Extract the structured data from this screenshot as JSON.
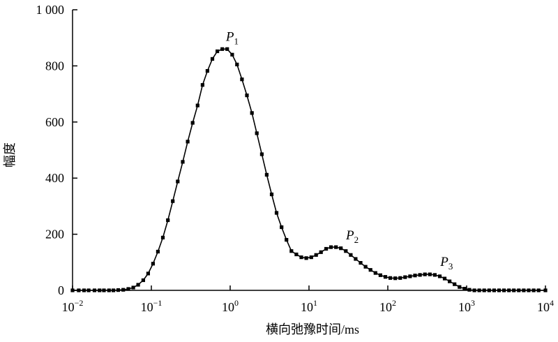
{
  "chart_data": {
    "type": "line",
    "title": "",
    "xlabel": "横向弛豫时间/ms",
    "ylabel": "幅度",
    "x_scale": "log",
    "xlim": [
      0.01,
      10000
    ],
    "ylim": [
      0,
      1000
    ],
    "grid": false,
    "legend": "none",
    "line_color": "#000000",
    "marker": "square",
    "x_ticks": [
      {
        "value": 0.01,
        "base": "10",
        "exp": "−2"
      },
      {
        "value": 0.1,
        "base": "10",
        "exp": "−1"
      },
      {
        "value": 1,
        "base": "10",
        "exp": "0"
      },
      {
        "value": 10,
        "base": "10",
        "exp": "1"
      },
      {
        "value": 100,
        "base": "10",
        "exp": "2"
      },
      {
        "value": 1000,
        "base": "10",
        "exp": "3"
      },
      {
        "value": 10000,
        "base": "10",
        "exp": "4"
      }
    ],
    "y_ticks": [
      {
        "value": 0,
        "label": "0"
      },
      {
        "value": 200,
        "label": "200"
      },
      {
        "value": 400,
        "label": "400"
      },
      {
        "value": 600,
        "label": "600"
      },
      {
        "value": 800,
        "label": "800"
      },
      {
        "value": 1000,
        "label": "1 000"
      }
    ],
    "annotations": [
      {
        "letter": "P",
        "sub": "1",
        "x": 1.2,
        "y": 860
      },
      {
        "letter": "P",
        "sub": "2",
        "x": 40,
        "y": 152
      },
      {
        "letter": "P",
        "sub": "3",
        "x": 630,
        "y": 57
      }
    ],
    "series": [
      {
        "x": [
          0.01,
          0.012,
          0.014,
          0.016,
          0.019,
          0.022,
          0.025,
          0.029,
          0.033,
          0.038,
          0.044,
          0.051,
          0.059,
          0.068,
          0.079,
          0.091,
          0.105,
          0.121,
          0.14,
          0.162,
          0.187,
          0.216,
          0.25,
          0.289,
          0.334,
          0.386,
          0.446,
          0.515,
          0.595,
          0.687,
          0.794,
          0.917,
          1.06,
          1.22,
          1.41,
          1.63,
          1.89,
          2.18,
          2.52,
          2.91,
          3.36,
          3.88,
          4.49,
          5.18,
          5.99,
          6.92,
          7.99,
          9.23,
          10.7,
          12.3,
          14.2,
          16.5,
          19.0,
          22.0,
          25.4,
          29.3,
          33.9,
          39.1,
          45.2,
          52.2,
          60.3,
          69.7,
          80.6,
          93.1,
          107.6,
          124.3,
          143.6,
          165.9,
          191.7,
          221.5,
          255.9,
          295.6,
          341.6,
          394.6,
          455.9,
          526.7,
          608.6,
          703.1,
          812.4,
          938.6,
          1084,
          1253,
          1447,
          1672,
          1932,
          2232,
          2579,
          2980,
          3442,
          3977,
          4595,
          5309,
          6134,
          7087,
          8188,
          10000
        ],
        "y": [
          0,
          0,
          0,
          0,
          0,
          0,
          0,
          0,
          0,
          1,
          2,
          5,
          10,
          20,
          36,
          60,
          95,
          138,
          188,
          250,
          318,
          388,
          458,
          530,
          597,
          659,
          732,
          782,
          825,
          852,
          860,
          860,
          840,
          805,
          752,
          695,
          632,
          560,
          485,
          412,
          342,
          276,
          225,
          180,
          140,
          128,
          118,
          115,
          118,
          126,
          136,
          148,
          154,
          154,
          150,
          140,
          126,
          112,
          98,
          84,
          73,
          62,
          54,
          48,
          44,
          43,
          44,
          47,
          50,
          53,
          55,
          57,
          57,
          55,
          50,
          42,
          32,
          22,
          12,
          6,
          2,
          0,
          0,
          0,
          0,
          0,
          0,
          0,
          0,
          0,
          0,
          0,
          0,
          0,
          0,
          0
        ]
      }
    ]
  }
}
